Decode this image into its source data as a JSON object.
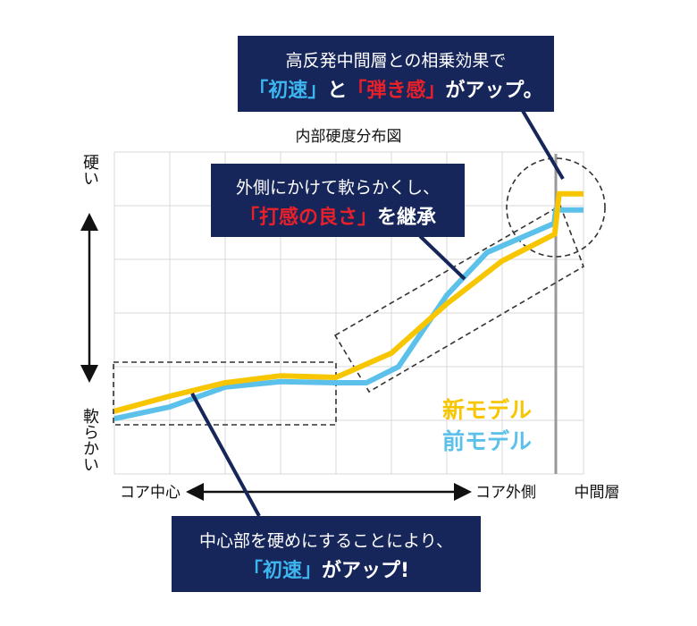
{
  "chart_data": {
    "type": "line",
    "title": "内部硬度分布図",
    "y_axis_labels": {
      "top": "硬い",
      "bottom": "軟らかい"
    },
    "x_axis_labels": [
      "コア中心",
      "コア外側",
      "中間層"
    ],
    "xlim": [
      0,
      8.47
    ],
    "ylim": [
      0,
      6
    ],
    "series": [
      {
        "name": "新モデル",
        "color": "#f7c600",
        "x": [
          0,
          1,
          2,
          3,
          4,
          5,
          6,
          7,
          7.95,
          8.03,
          8.47
        ],
        "values": [
          1.17,
          1.45,
          1.7,
          1.83,
          1.8,
          2.25,
          3.17,
          3.97,
          4.47,
          5.22,
          5.22
        ]
      },
      {
        "name": "前モデル",
        "color": "#5bc0ea",
        "x": [
          0,
          1,
          2,
          3,
          4,
          4.55,
          5.13,
          6,
          6.73,
          7.94,
          7.97,
          8.47
        ],
        "values": [
          1.03,
          1.25,
          1.62,
          1.72,
          1.7,
          1.7,
          2.0,
          3.33,
          4.13,
          4.67,
          4.92,
          4.92
        ]
      }
    ],
    "annotations": [
      {
        "lines": [
          [
            {
              "text": "高反発中間層との相乗効果で",
              "color": "#ffffff"
            }
          ],
          [
            {
              "text": "「初速」",
              "color": "#3db6f0"
            },
            {
              "text": "と",
              "color": "#ffffff"
            },
            {
              "text": "「弾き感」",
              "color": "#e8202a"
            },
            {
              "text": "がアップ。",
              "color": "#ffffff"
            }
          ]
        ]
      },
      {
        "lines": [
          [
            {
              "text": "外側にかけて軟らかくし、",
              "color": "#ffffff"
            }
          ],
          [
            {
              "text": "「打感の良さ」",
              "color": "#e8202a"
            },
            {
              "text": "を継承",
              "color": "#ffffff"
            }
          ]
        ]
      },
      {
        "lines": [
          [
            {
              "text": "中心部を硬めにすることにより、",
              "color": "#ffffff"
            }
          ],
          [
            {
              "text": "「初速」",
              "color": "#3db6f0"
            },
            {
              "text": "がアップ!",
              "color": "#ffffff"
            }
          ]
        ]
      }
    ]
  }
}
